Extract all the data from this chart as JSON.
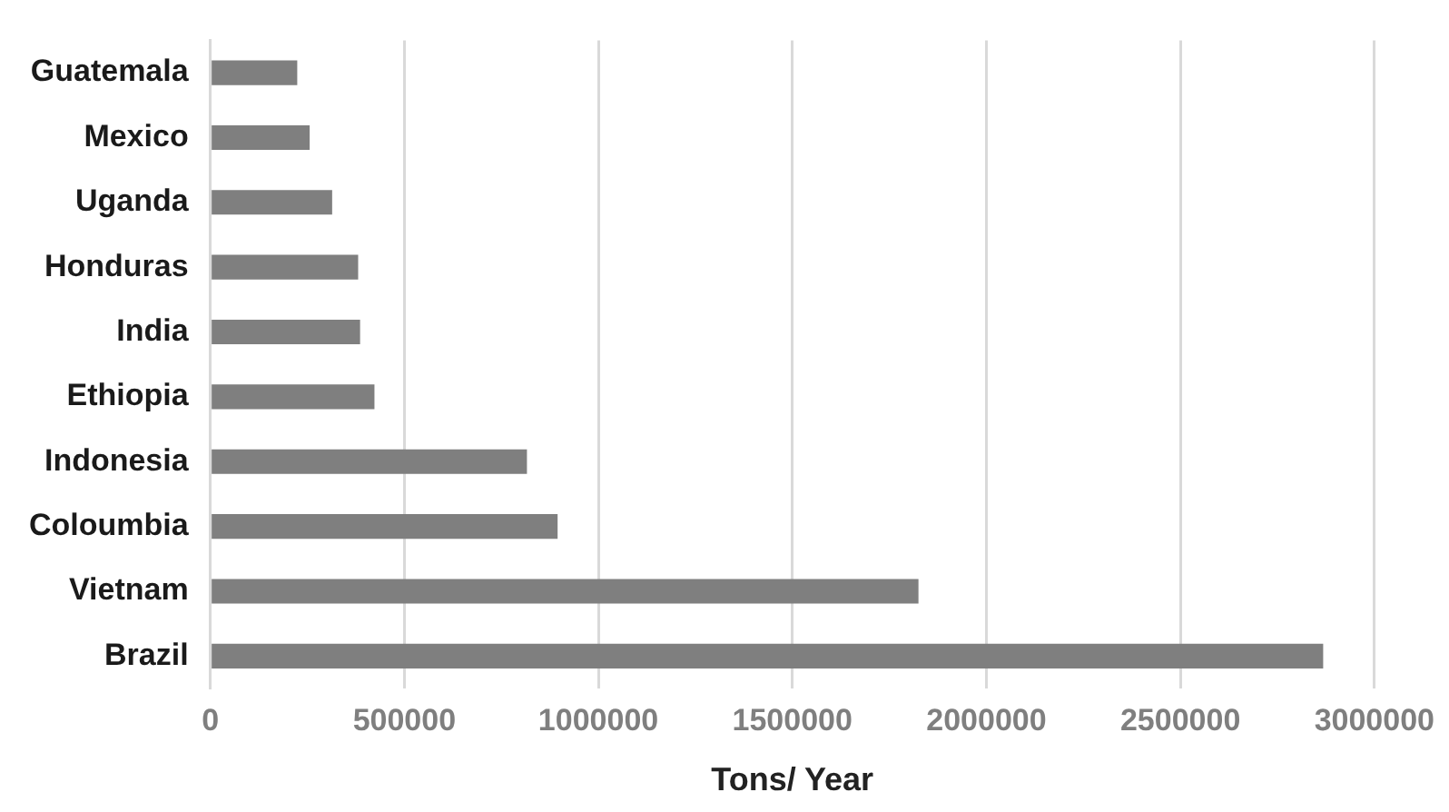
{
  "chart_data": {
    "type": "bar",
    "orientation": "horizontal",
    "xlabel": "Tons/ Year",
    "categories": [
      "Guatemala",
      "Mexico",
      "Uganda",
      "Honduras",
      "India",
      "Ethiopia",
      "Indonesia",
      "Coloumbia",
      "Vietnam",
      "Brazil"
    ],
    "values": [
      224000,
      256000,
      314000,
      381000,
      386000,
      423000,
      816000,
      895000,
      1825000,
      2868000
    ],
    "color": "#7f7f7f",
    "xlim": [
      0,
      3000000
    ],
    "xticks": [
      0,
      500000,
      1000000,
      1500000,
      2000000,
      2500000,
      3000000
    ],
    "grid": "x",
    "legend": false
  }
}
